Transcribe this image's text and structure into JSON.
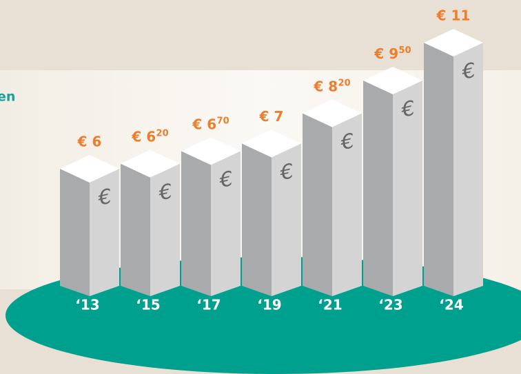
{
  "chart_data": {
    "type": "bar3d",
    "side_text": "en",
    "categories": [
      "‘13",
      "‘15",
      "‘17",
      "‘19",
      "‘21",
      "‘23",
      "‘24"
    ],
    "values": [
      6,
      6.2,
      6.7,
      7,
      8.2,
      9.5,
      11
    ],
    "value_labels": [
      "€ 6",
      "€ 6,20",
      "€ 6,70",
      "€ 7",
      "€ 8,20",
      "€ 9,50",
      "€ 11"
    ],
    "bar_symbol": "€",
    "label_color": "#ee7d2c",
    "base_color": "#00a08f"
  }
}
